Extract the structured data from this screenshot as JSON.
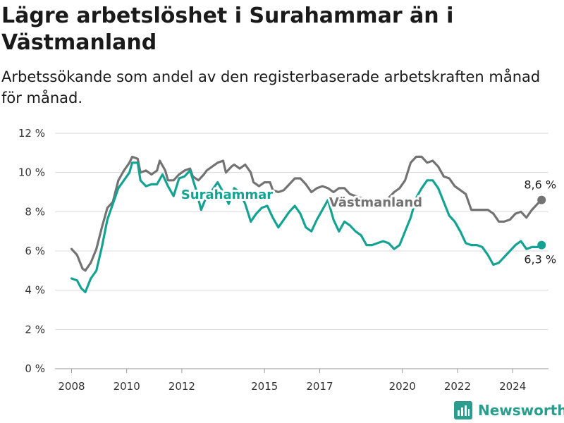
{
  "title": "Lägre arbetslöshet i Surahammar än i Västmanland",
  "subtitle": "Arbetssökande som andel av den registerbaserade arbetskraften månad för månad.",
  "brand": "Newsworthy",
  "colors": {
    "surahammar": "#14a392",
    "vastmanland": "#737373",
    "grid": "#d9d9d9",
    "brand": "#2a9d8f"
  },
  "chart_data": {
    "type": "line",
    "title": "Lägre arbetslöshet i Surahammar än i Västmanland",
    "ylim": [
      0,
      12
    ],
    "y_ticks": [
      "0 %",
      "2 %",
      "4 %",
      "6 %",
      "8 %",
      "10 %",
      "12 %"
    ],
    "x_ticks": [
      "2008",
      "2010",
      "2012",
      "2015",
      "2017",
      "2020",
      "2022",
      "2024"
    ],
    "x_range": [
      2007.4,
      2025.3
    ],
    "grid": "horizontal",
    "series": [
      {
        "name": "Västmanland",
        "end_label": "8,6 %",
        "points": [
          [
            2008.0,
            6.1
          ],
          [
            2008.2,
            5.8
          ],
          [
            2008.4,
            5.1
          ],
          [
            2008.5,
            5.0
          ],
          [
            2008.7,
            5.4
          ],
          [
            2008.9,
            6.1
          ],
          [
            2009.1,
            7.2
          ],
          [
            2009.3,
            8.2
          ],
          [
            2009.5,
            8.5
          ],
          [
            2009.7,
            9.6
          ],
          [
            2009.9,
            10.1
          ],
          [
            2010.1,
            10.5
          ],
          [
            2010.2,
            10.8
          ],
          [
            2010.4,
            10.7
          ],
          [
            2010.5,
            10.0
          ],
          [
            2010.7,
            10.1
          ],
          [
            2010.9,
            9.9
          ],
          [
            2011.1,
            10.1
          ],
          [
            2011.2,
            10.6
          ],
          [
            2011.4,
            10.1
          ],
          [
            2011.5,
            9.6
          ],
          [
            2011.7,
            9.6
          ],
          [
            2011.9,
            9.9
          ],
          [
            2012.1,
            10.1
          ],
          [
            2012.3,
            10.2
          ],
          [
            2012.4,
            9.8
          ],
          [
            2012.6,
            9.6
          ],
          [
            2012.8,
            9.9
          ],
          [
            2012.9,
            10.1
          ],
          [
            2013.1,
            10.3
          ],
          [
            2013.3,
            10.5
          ],
          [
            2013.5,
            10.6
          ],
          [
            2013.6,
            10.0
          ],
          [
            2013.8,
            10.3
          ],
          [
            2013.9,
            10.4
          ],
          [
            2014.1,
            10.2
          ],
          [
            2014.3,
            10.4
          ],
          [
            2014.5,
            10.0
          ],
          [
            2014.6,
            9.5
          ],
          [
            2014.8,
            9.3
          ],
          [
            2015.0,
            9.5
          ],
          [
            2015.2,
            9.5
          ],
          [
            2015.3,
            9.1
          ],
          [
            2015.5,
            9.0
          ],
          [
            2015.7,
            9.1
          ],
          [
            2015.9,
            9.4
          ],
          [
            2016.1,
            9.7
          ],
          [
            2016.3,
            9.7
          ],
          [
            2016.5,
            9.4
          ],
          [
            2016.7,
            9.0
          ],
          [
            2016.9,
            9.2
          ],
          [
            2017.1,
            9.3
          ],
          [
            2017.3,
            9.2
          ],
          [
            2017.5,
            9.0
          ],
          [
            2017.7,
            9.2
          ],
          [
            2017.9,
            9.2
          ],
          [
            2018.1,
            8.9
          ],
          [
            2018.3,
            8.8
          ],
          [
            2018.5,
            8.7
          ],
          [
            2018.7,
            8.6
          ],
          [
            2018.9,
            8.5
          ],
          [
            2019.1,
            8.4
          ],
          [
            2019.3,
            8.5
          ],
          [
            2019.5,
            8.7
          ],
          [
            2019.7,
            9.0
          ],
          [
            2019.9,
            9.2
          ],
          [
            2020.1,
            9.6
          ],
          [
            2020.3,
            10.5
          ],
          [
            2020.5,
            10.8
          ],
          [
            2020.7,
            10.8
          ],
          [
            2020.9,
            10.5
          ],
          [
            2021.1,
            10.6
          ],
          [
            2021.3,
            10.3
          ],
          [
            2021.5,
            9.8
          ],
          [
            2021.7,
            9.7
          ],
          [
            2021.9,
            9.3
          ],
          [
            2022.1,
            9.1
          ],
          [
            2022.3,
            8.9
          ],
          [
            2022.5,
            8.1
          ],
          [
            2022.7,
            8.1
          ],
          [
            2022.9,
            8.1
          ],
          [
            2023.1,
            8.1
          ],
          [
            2023.3,
            7.9
          ],
          [
            2023.5,
            7.5
          ],
          [
            2023.7,
            7.5
          ],
          [
            2023.9,
            7.6
          ],
          [
            2024.1,
            7.9
          ],
          [
            2024.3,
            8.0
          ],
          [
            2024.5,
            7.7
          ],
          [
            2024.7,
            8.1
          ],
          [
            2024.9,
            8.4
          ],
          [
            2025.05,
            8.6
          ]
        ]
      },
      {
        "name": "Surahammar",
        "end_label": "6,3 %",
        "points": [
          [
            2008.0,
            4.6
          ],
          [
            2008.2,
            4.5
          ],
          [
            2008.35,
            4.1
          ],
          [
            2008.5,
            3.9
          ],
          [
            2008.7,
            4.6
          ],
          [
            2008.9,
            5.0
          ],
          [
            2009.1,
            6.2
          ],
          [
            2009.3,
            7.6
          ],
          [
            2009.5,
            8.4
          ],
          [
            2009.7,
            9.2
          ],
          [
            2009.9,
            9.6
          ],
          [
            2010.1,
            10.0
          ],
          [
            2010.2,
            10.5
          ],
          [
            2010.4,
            10.5
          ],
          [
            2010.5,
            9.6
          ],
          [
            2010.7,
            9.3
          ],
          [
            2010.9,
            9.4
          ],
          [
            2011.1,
            9.4
          ],
          [
            2011.3,
            9.9
          ],
          [
            2011.5,
            9.3
          ],
          [
            2011.7,
            8.8
          ],
          [
            2011.9,
            9.7
          ],
          [
            2012.1,
            9.8
          ],
          [
            2012.3,
            10.1
          ],
          [
            2012.5,
            9.2
          ],
          [
            2012.7,
            8.1
          ],
          [
            2012.9,
            8.8
          ],
          [
            2013.1,
            9.1
          ],
          [
            2013.3,
            9.5
          ],
          [
            2013.5,
            9.0
          ],
          [
            2013.7,
            8.4
          ],
          [
            2013.9,
            9.2
          ],
          [
            2014.1,
            9.0
          ],
          [
            2014.3,
            8.4
          ],
          [
            2014.5,
            7.5
          ],
          [
            2014.7,
            7.9
          ],
          [
            2014.9,
            8.2
          ],
          [
            2015.1,
            8.3
          ],
          [
            2015.3,
            7.7
          ],
          [
            2015.5,
            7.2
          ],
          [
            2015.7,
            7.6
          ],
          [
            2015.9,
            8.0
          ],
          [
            2016.1,
            8.3
          ],
          [
            2016.3,
            7.9
          ],
          [
            2016.5,
            7.2
          ],
          [
            2016.7,
            7.0
          ],
          [
            2016.9,
            7.6
          ],
          [
            2017.1,
            8.1
          ],
          [
            2017.3,
            8.6
          ],
          [
            2017.5,
            7.6
          ],
          [
            2017.7,
            7.0
          ],
          [
            2017.9,
            7.5
          ],
          [
            2018.1,
            7.3
          ],
          [
            2018.3,
            7.0
          ],
          [
            2018.5,
            6.8
          ],
          [
            2018.7,
            6.3
          ],
          [
            2018.9,
            6.3
          ],
          [
            2019.1,
            6.4
          ],
          [
            2019.3,
            6.5
          ],
          [
            2019.5,
            6.4
          ],
          [
            2019.7,
            6.1
          ],
          [
            2019.9,
            6.3
          ],
          [
            2020.1,
            7.0
          ],
          [
            2020.3,
            7.7
          ],
          [
            2020.5,
            8.7
          ],
          [
            2020.7,
            9.2
          ],
          [
            2020.9,
            9.6
          ],
          [
            2021.1,
            9.6
          ],
          [
            2021.3,
            9.2
          ],
          [
            2021.5,
            8.5
          ],
          [
            2021.7,
            7.8
          ],
          [
            2021.9,
            7.5
          ],
          [
            2022.1,
            7.0
          ],
          [
            2022.3,
            6.4
          ],
          [
            2022.5,
            6.3
          ],
          [
            2022.7,
            6.3
          ],
          [
            2022.9,
            6.2
          ],
          [
            2023.1,
            5.8
          ],
          [
            2023.3,
            5.3
          ],
          [
            2023.5,
            5.4
          ],
          [
            2023.7,
            5.7
          ],
          [
            2023.9,
            6.0
          ],
          [
            2024.1,
            6.3
          ],
          [
            2024.3,
            6.5
          ],
          [
            2024.5,
            6.1
          ],
          [
            2024.7,
            6.2
          ],
          [
            2024.9,
            6.2
          ],
          [
            2025.05,
            6.3
          ]
        ]
      }
    ],
    "annotations": [
      {
        "text": "Surahammar",
        "series": "Surahammar"
      },
      {
        "text": "Västmanland",
        "series": "Västmanland"
      }
    ]
  }
}
